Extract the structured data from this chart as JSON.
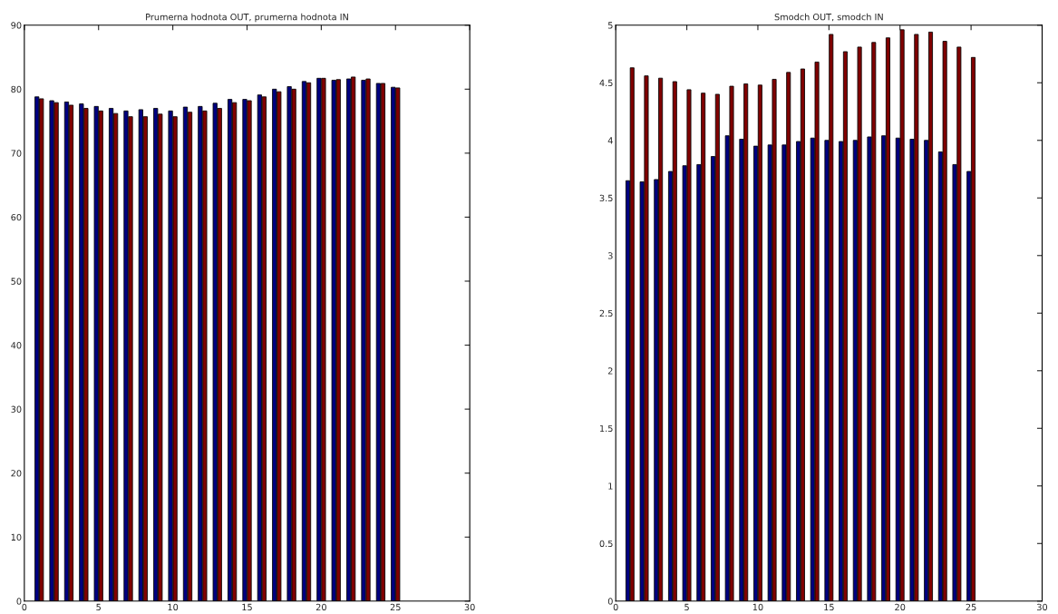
{
  "chart_data": [
    {
      "type": "bar",
      "title": "Prumerna hodnota OUT, prumerna hodnota IN",
      "x": [
        1,
        2,
        3,
        4,
        5,
        6,
        7,
        8,
        9,
        10,
        11,
        12,
        13,
        14,
        15,
        16,
        17,
        18,
        19,
        20,
        21,
        22,
        23,
        24,
        25
      ],
      "series": [
        {
          "color": "#000080",
          "values": [
            78.8,
            78.2,
            78.0,
            77.7,
            77.3,
            77.0,
            76.6,
            76.8,
            77.0,
            76.6,
            77.2,
            77.3,
            77.8,
            78.4,
            78.4,
            79.1,
            80.0,
            80.4,
            81.2,
            81.7,
            81.4,
            81.6,
            81.4,
            80.9,
            80.3
          ]
        },
        {
          "color": "#800000",
          "values": [
            78.5,
            77.9,
            77.5,
            77.0,
            76.6,
            76.2,
            75.7,
            75.7,
            76.1,
            75.7,
            76.4,
            76.6,
            77.0,
            77.9,
            78.2,
            78.8,
            79.6,
            80.0,
            81.0,
            81.7,
            81.5,
            81.9,
            81.6,
            80.9,
            80.2
          ]
        }
      ],
      "xlim": [
        0,
        30
      ],
      "xticks": [
        0,
        5,
        10,
        15,
        20,
        25,
        30
      ],
      "ylim": [
        0,
        90
      ],
      "yticks": [
        0,
        10,
        20,
        30,
        40,
        50,
        60,
        70,
        80,
        90
      ]
    },
    {
      "type": "bar",
      "title": "Smodch OUT, smodch IN",
      "x": [
        1,
        2,
        3,
        4,
        5,
        6,
        7,
        8,
        9,
        10,
        11,
        12,
        13,
        14,
        15,
        16,
        17,
        18,
        19,
        20,
        21,
        22,
        23,
        24,
        25
      ],
      "series": [
        {
          "color": "#000080",
          "values": [
            3.65,
            3.64,
            3.66,
            3.73,
            3.78,
            3.79,
            3.86,
            4.04,
            4.01,
            3.95,
            3.96,
            3.96,
            3.99,
            4.02,
            4.0,
            3.99,
            4.0,
            4.03,
            4.04,
            4.02,
            4.01,
            4.0,
            3.9,
            3.79,
            3.73
          ]
        },
        {
          "color": "#800000",
          "values": [
            4.63,
            4.56,
            4.54,
            4.51,
            4.44,
            4.41,
            4.4,
            4.47,
            4.49,
            4.48,
            4.53,
            4.59,
            4.62,
            4.68,
            4.92,
            4.77,
            4.81,
            4.85,
            4.89,
            4.96,
            4.92,
            4.94,
            4.86,
            4.81,
            4.72
          ]
        }
      ],
      "xlim": [
        0,
        30
      ],
      "xticks": [
        0,
        5,
        10,
        15,
        20,
        25,
        30
      ],
      "ylim": [
        0,
        5
      ],
      "yticks": [
        0,
        0.5,
        1,
        1.5,
        2,
        2.5,
        3,
        3.5,
        4,
        4.5,
        5
      ]
    }
  ]
}
